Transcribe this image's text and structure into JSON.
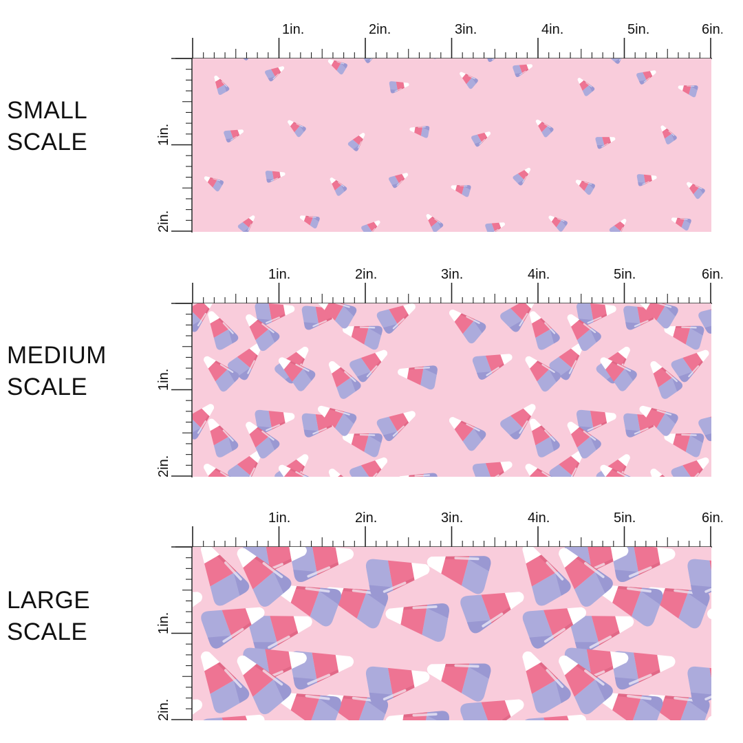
{
  "swatches": [
    {
      "id": "small",
      "label_line1": "SMALL",
      "label_line2": "SCALE",
      "scale_factor": 1,
      "ruler_top_labels": [
        "1in.",
        "2in.",
        "3in.",
        "4in.",
        "5in.",
        "6in."
      ],
      "ruler_side_labels": [
        "1in.",
        "2in."
      ]
    },
    {
      "id": "medium",
      "label_line1": "MEDIUM",
      "label_line2": "SCALE",
      "scale_factor": 2,
      "ruler_top_labels": [
        "1in.",
        "2in.",
        "3in.",
        "4in.",
        "5in.",
        "6in."
      ],
      "ruler_side_labels": [
        "1in.",
        "2in."
      ]
    },
    {
      "id": "large",
      "label_line1": "LARGE",
      "label_line2": "SCALE",
      "scale_factor": 3.2,
      "ruler_top_labels": [
        "1in.",
        "2in.",
        "3in.",
        "4in.",
        "5in.",
        "6in."
      ],
      "ruler_side_labels": [
        "1in.",
        "2in."
      ]
    }
  ],
  "pattern": {
    "name": "candy-corn",
    "colors": {
      "background": "#f9ccdb",
      "pink": "#ee7493",
      "pink_shade": "#d9607f",
      "lavender": "#acabdc",
      "lavender_shade": "#8e8ccb",
      "tip": "#ffffff",
      "highlight": "#f6f3fb"
    }
  }
}
